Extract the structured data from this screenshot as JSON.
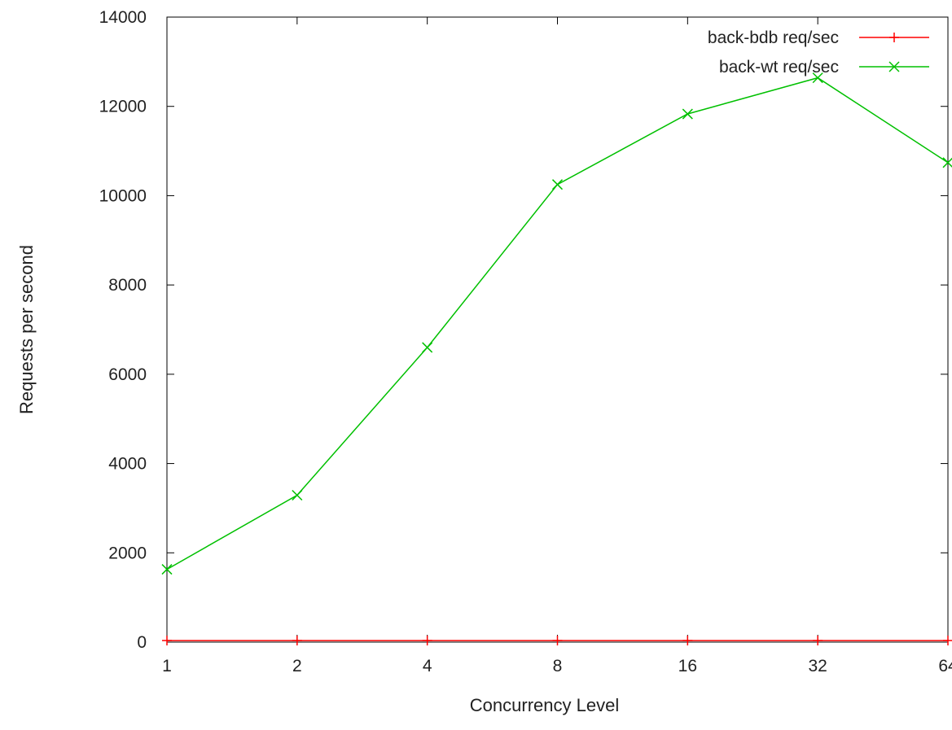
{
  "chart_data": {
    "type": "line",
    "xlabel": "Concurrency Level",
    "ylabel": "Requests per second",
    "x_scale": "log2",
    "categories": [
      "1",
      "2",
      "4",
      "8",
      "16",
      "32",
      "64"
    ],
    "x": [
      1,
      2,
      4,
      8,
      16,
      32,
      64
    ],
    "ylim": [
      0,
      14000
    ],
    "yticks": [
      0,
      2000,
      4000,
      6000,
      8000,
      10000,
      12000,
      14000
    ],
    "series": [
      {
        "name": "back-bdb req/sec",
        "color": "#ff0000",
        "marker": "plus",
        "values": [
          35,
          35,
          35,
          35,
          35,
          35,
          35
        ]
      },
      {
        "name": "back-wt req/sec",
        "color": "#00c000",
        "marker": "cross",
        "values": [
          1630,
          3290,
          6600,
          10250,
          11830,
          12640,
          10740
        ]
      }
    ],
    "legend_position": "top-right",
    "grid": false
  }
}
